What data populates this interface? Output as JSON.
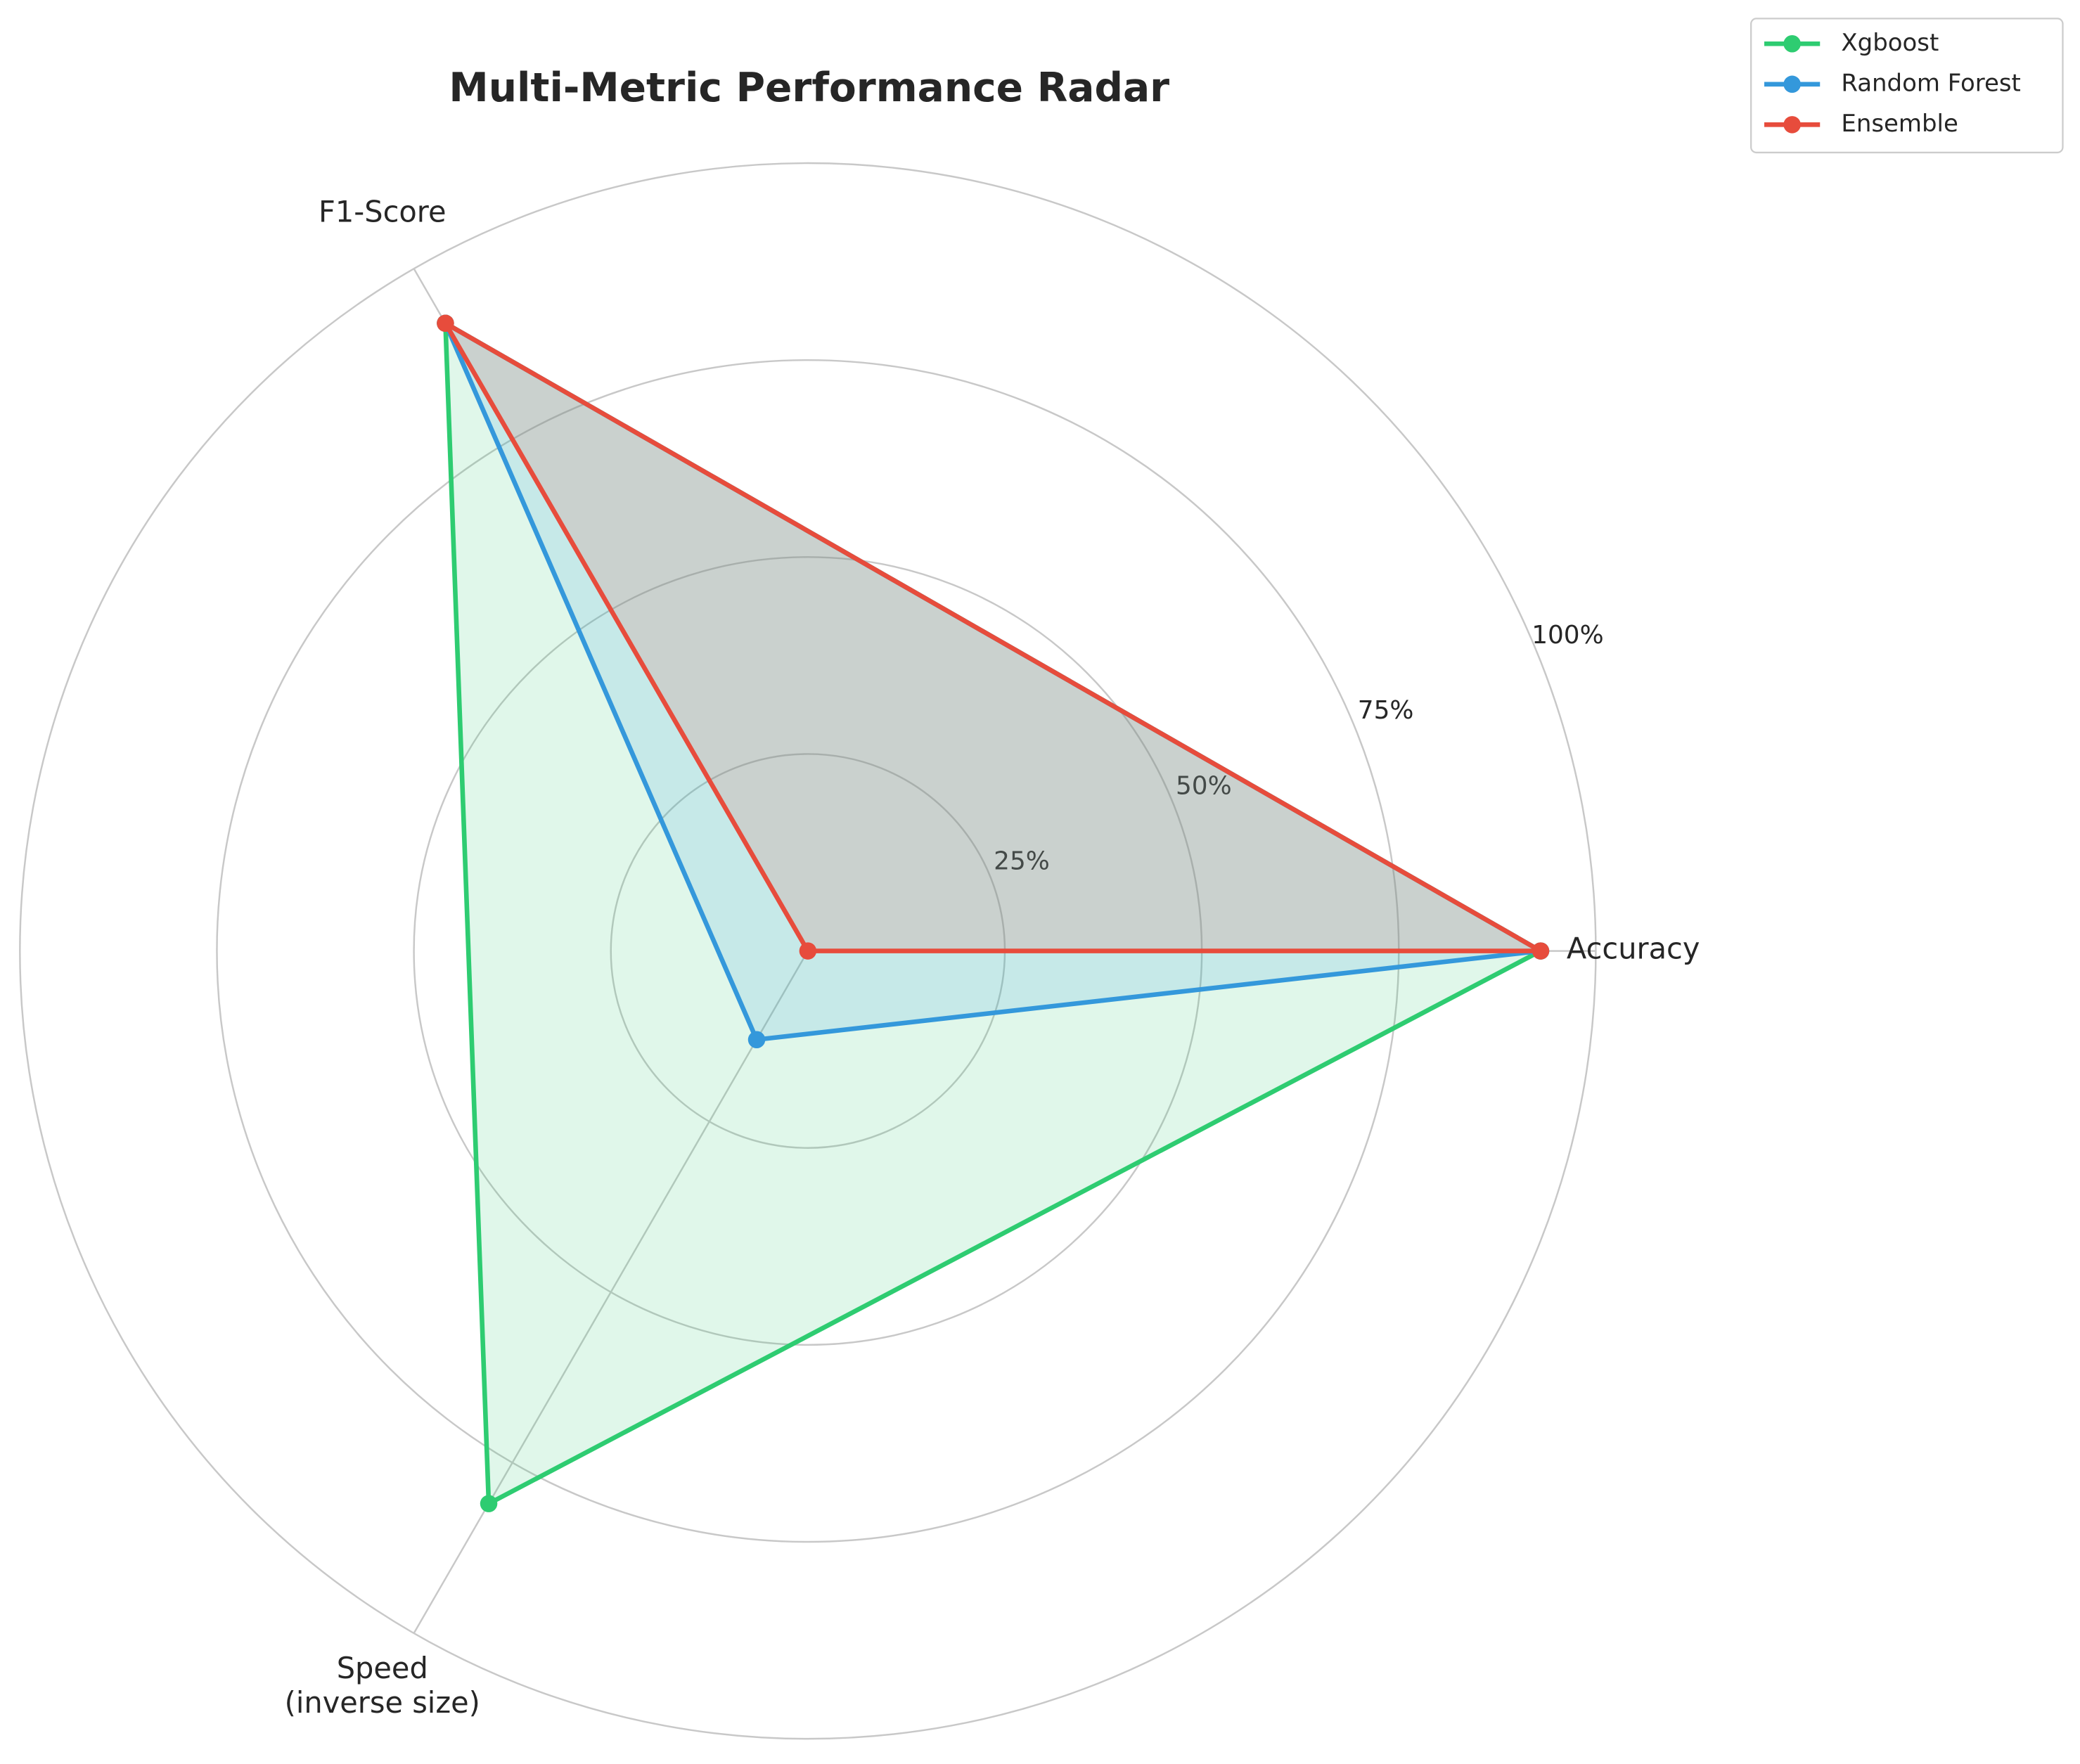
{
  "chart_data": {
    "type": "radar",
    "title": "Multi-Metric Performance Radar",
    "categories": [
      "Accuracy",
      "F1-Score",
      "Speed\n(inverse size)"
    ],
    "series": [
      {
        "name": "Xgboost",
        "color": "#2ecc71",
        "values": [
          93,
          92,
          81
        ]
      },
      {
        "name": "Random Forest",
        "color": "#3498db",
        "values": [
          93,
          92,
          13
        ]
      },
      {
        "name": "Ensemble",
        "color": "#e74c3c",
        "values": [
          93,
          92,
          0
        ]
      }
    ],
    "ylim": [
      0,
      100
    ],
    "yticks": [
      {
        "value": 25,
        "label": "25%"
      },
      {
        "value": 50,
        "label": "50%"
      },
      {
        "value": 75,
        "label": "75%"
      },
      {
        "value": 100,
        "label": "100%"
      }
    ],
    "grid": true,
    "legend": "upper right"
  }
}
